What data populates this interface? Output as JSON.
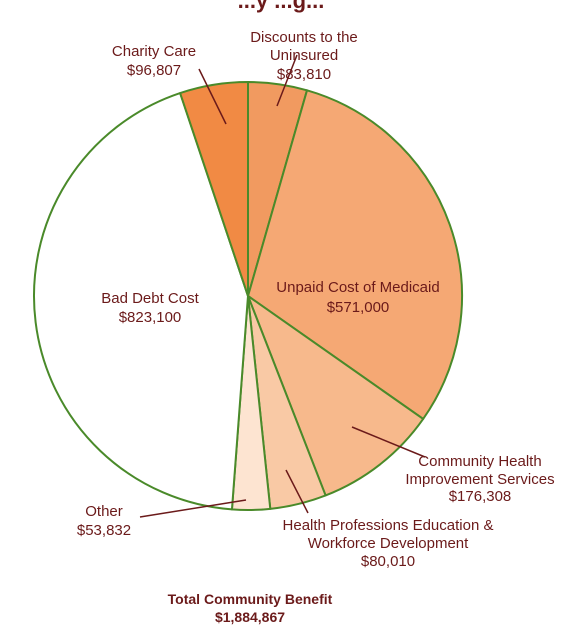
{
  "chart_data": {
    "type": "pie",
    "title": "...y ...g...",
    "slices": [
      {
        "label": "Discounts to the Uninsured",
        "value": 83810,
        "display": "$83,810",
        "color": "#f19a60"
      },
      {
        "label": "Unpaid Cost of Medicaid",
        "value": 571000,
        "display": "$571,000",
        "color": "#f5a874"
      },
      {
        "label": "Community Health Improvement Services",
        "value": 176308,
        "display": "$176,308",
        "color": "#f7b98c"
      },
      {
        "label": "Health Professions Education & Workforce Development",
        "value": 80010,
        "display": "$80,010",
        "color": "#f9c9a5"
      },
      {
        "label": "Other",
        "value": 53832,
        "display": "$53,832",
        "color": "#fde4d1"
      },
      {
        "label": "Bad Debt Cost",
        "value": 823100,
        "display": "$823,100",
        "color": "#ffffff"
      },
      {
        "label": "Charity Care",
        "value": 96807,
        "display": "$96,807",
        "color": "#f18a44"
      }
    ],
    "total_label": "Total Community Benefit",
    "total_value": "$1,884,867",
    "stroke_color": "#4a8a2a",
    "text_color": "#6b1a1a"
  }
}
